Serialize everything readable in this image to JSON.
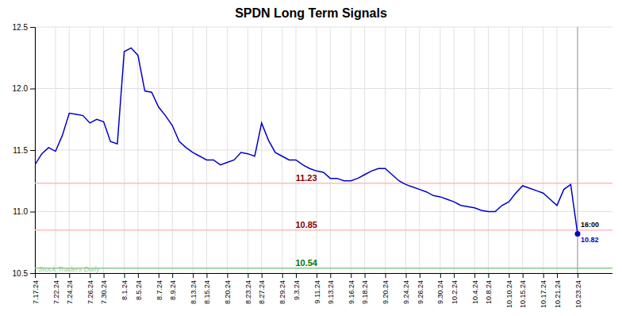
{
  "chart_data": {
    "type": "line",
    "title": "SPDN Long Term Signals",
    "categories": [
      "7.17.24",
      null,
      null,
      "7.22.24",
      null,
      "7.24.24",
      null,
      null,
      "7.26.24",
      null,
      "7.30.24",
      null,
      null,
      "8.1.24",
      null,
      "8.5.24",
      null,
      null,
      "8.7.24",
      null,
      "8.9.24",
      null,
      null,
      "8.13.24",
      null,
      "8.15.24",
      null,
      null,
      "8.20.24",
      null,
      null,
      "8.23.24",
      null,
      "8.27.24",
      null,
      null,
      "8.29.24",
      null,
      "9.3.24",
      null,
      null,
      "9.11.24",
      null,
      "9.13.24",
      null,
      null,
      "9.16.24",
      null,
      "9.18.24",
      null,
      null,
      "9.20.24",
      null,
      null,
      "9.24.24",
      null,
      "9.26.24",
      null,
      null,
      "9.30.24",
      null,
      "10.2.24",
      null,
      null,
      "10.4.24",
      null,
      "10.8.24",
      null,
      null,
      "10.10.24",
      null,
      "10.15.24",
      null,
      null,
      "10.17.24",
      null,
      "10.21.24",
      null,
      null,
      "10.23.24"
    ],
    "values": [
      11.38,
      11.47,
      11.52,
      11.49,
      11.62,
      11.8,
      11.79,
      11.78,
      11.72,
      11.75,
      11.73,
      11.57,
      11.55,
      12.3,
      12.33,
      12.27,
      11.98,
      11.97,
      11.85,
      11.78,
      11.7,
      11.57,
      11.52,
      11.48,
      11.45,
      11.42,
      11.42,
      11.38,
      11.4,
      11.42,
      11.48,
      11.47,
      11.45,
      11.72,
      11.58,
      11.48,
      11.45,
      11.42,
      11.42,
      11.38,
      11.35,
      11.33,
      11.32,
      11.27,
      11.27,
      11.25,
      11.25,
      11.27,
      11.3,
      11.33,
      11.35,
      11.35,
      11.3,
      11.25,
      11.22,
      11.2,
      11.18,
      11.16,
      11.13,
      11.12,
      11.1,
      11.08,
      11.05,
      11.04,
      11.03,
      11.01,
      11.0,
      11.0,
      11.05,
      11.08,
      11.15,
      11.21,
      11.19,
      11.17,
      11.15,
      11.1,
      11.05,
      11.18,
      11.22,
      10.82
    ],
    "color": "#0000cc",
    "ylim": [
      10.5,
      12.5
    ],
    "yticks": [
      10.5,
      {
        "value": 11,
        "label": "11.0"
      },
      11.5,
      {
        "value": 12,
        "label": "12.0"
      },
      12.5
    ],
    "grid": true,
    "annotations": [
      {
        "type": "hline",
        "y": 11.23,
        "text": "11.23",
        "color": "#ffbbbb",
        "text_color": "#880000"
      },
      {
        "type": "hline",
        "y": 10.85,
        "text": "10.85",
        "color": "#ffbbbb",
        "text_color": "#880000"
      },
      {
        "type": "hline",
        "y": 10.54,
        "text": "10.54",
        "color": "#88cc88",
        "text_color": "#007700"
      },
      {
        "type": "watermark",
        "text": "Stock Traders Daily",
        "color": "#99cc99"
      },
      {
        "type": "end_time",
        "text": "16:00"
      },
      {
        "type": "end_price",
        "text": "10.82"
      }
    ]
  }
}
